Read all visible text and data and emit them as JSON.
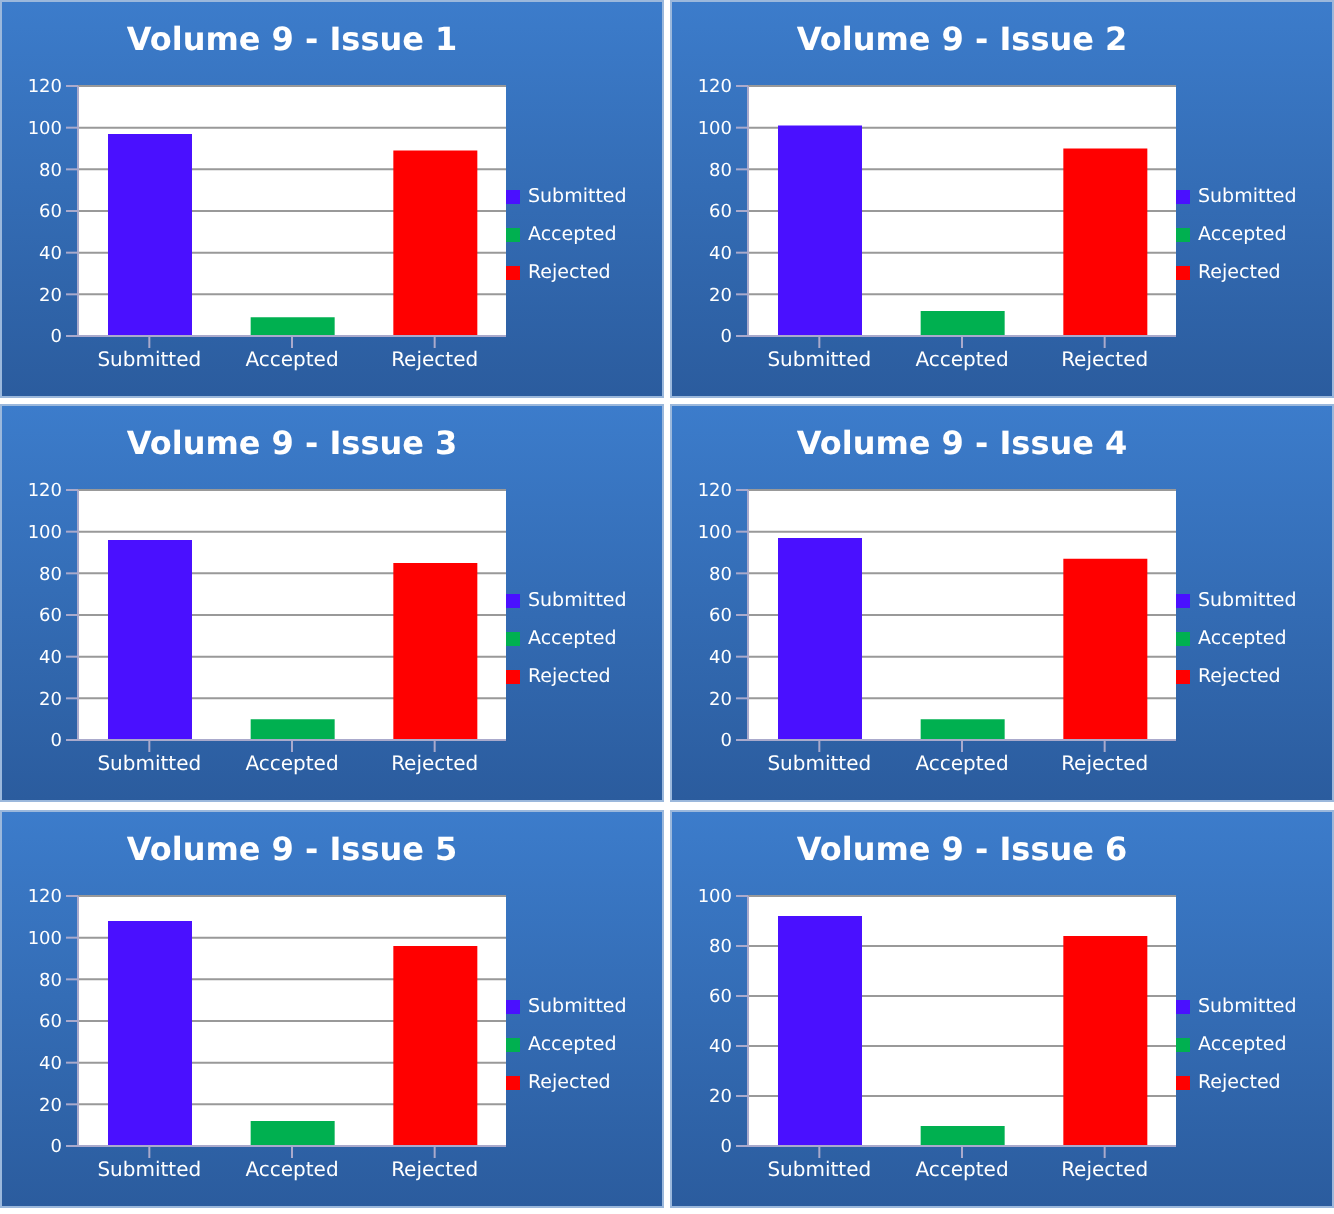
{
  "chart_data": [
    {
      "type": "bar",
      "title": "Volume 9 - Issue 1",
      "categories": [
        "Submitted",
        "Accepted",
        "Rejected"
      ],
      "stacked": true,
      "series": [
        {
          "name": "Submitted",
          "color": "#4a10ff",
          "values": [
            97,
            null,
            null
          ]
        },
        {
          "name": "Accepted",
          "color": "#00b050",
          "values": [
            null,
            9,
            null
          ]
        },
        {
          "name": "Rejected",
          "color": "#ff0000",
          "values": [
            null,
            null,
            89
          ]
        }
      ],
      "ylim": [
        0,
        120
      ],
      "yticks": [
        0,
        20,
        40,
        60,
        80,
        100,
        120
      ],
      "grid": "y",
      "legend": "right"
    },
    {
      "type": "bar",
      "title": "Volume 9 - Issue 2",
      "categories": [
        "Submitted",
        "Accepted",
        "Rejected"
      ],
      "stacked": true,
      "series": [
        {
          "name": "Submitted",
          "color": "#4a10ff",
          "values": [
            101,
            null,
            null
          ]
        },
        {
          "name": "Accepted",
          "color": "#00b050",
          "values": [
            null,
            12,
            null
          ]
        },
        {
          "name": "Rejected",
          "color": "#ff0000",
          "values": [
            null,
            null,
            90
          ]
        }
      ],
      "ylim": [
        0,
        120
      ],
      "yticks": [
        0,
        20,
        40,
        60,
        80,
        100,
        120
      ],
      "grid": "y",
      "legend": "right"
    },
    {
      "type": "bar",
      "title": "Volume 9 - Issue 3",
      "categories": [
        "Submitted",
        "Accepted",
        "Rejected"
      ],
      "stacked": true,
      "series": [
        {
          "name": "Submitted",
          "color": "#4a10ff",
          "values": [
            96,
            null,
            null
          ]
        },
        {
          "name": "Accepted",
          "color": "#00b050",
          "values": [
            null,
            10,
            null
          ]
        },
        {
          "name": "Rejected",
          "color": "#ff0000",
          "values": [
            null,
            null,
            85
          ]
        }
      ],
      "ylim": [
        0,
        120
      ],
      "yticks": [
        0,
        20,
        40,
        60,
        80,
        100,
        120
      ],
      "grid": "y",
      "legend": "right"
    },
    {
      "type": "bar",
      "title": "Volume 9 - Issue 4",
      "categories": [
        "Submitted",
        "Accepted",
        "Rejected"
      ],
      "stacked": true,
      "series": [
        {
          "name": "Submitted",
          "color": "#4a10ff",
          "values": [
            97,
            null,
            null
          ]
        },
        {
          "name": "Accepted",
          "color": "#00b050",
          "values": [
            null,
            10,
            null
          ]
        },
        {
          "name": "Rejected",
          "color": "#ff0000",
          "values": [
            null,
            null,
            87
          ]
        }
      ],
      "ylim": [
        0,
        120
      ],
      "yticks": [
        0,
        20,
        40,
        60,
        80,
        100,
        120
      ],
      "grid": "y",
      "legend": "right"
    },
    {
      "type": "bar",
      "title": "Volume 9 - Issue 5",
      "categories": [
        "Submitted",
        "Accepted",
        "Rejected"
      ],
      "stacked": true,
      "series": [
        {
          "name": "Submitted",
          "color": "#4a10ff",
          "values": [
            108,
            null,
            null
          ]
        },
        {
          "name": "Accepted",
          "color": "#00b050",
          "values": [
            null,
            12,
            null
          ]
        },
        {
          "name": "Rejected",
          "color": "#ff0000",
          "values": [
            null,
            null,
            96
          ]
        }
      ],
      "ylim": [
        0,
        120
      ],
      "yticks": [
        0,
        20,
        40,
        60,
        80,
        100,
        120
      ],
      "grid": "y",
      "legend": "right"
    },
    {
      "type": "bar",
      "title": "Volume 9 - Issue 6",
      "categories": [
        "Submitted",
        "Accepted",
        "Rejected"
      ],
      "stacked": true,
      "series": [
        {
          "name": "Submitted",
          "color": "#4a10ff",
          "values": [
            92,
            null,
            null
          ]
        },
        {
          "name": "Accepted",
          "color": "#00b050",
          "values": [
            null,
            8,
            null
          ]
        },
        {
          "name": "Rejected",
          "color": "#ff0000",
          "values": [
            null,
            null,
            84
          ]
        }
      ],
      "ylim": [
        0,
        100
      ],
      "yticks": [
        0,
        20,
        40,
        60,
        80,
        100
      ],
      "grid": "y",
      "legend": "right"
    }
  ]
}
